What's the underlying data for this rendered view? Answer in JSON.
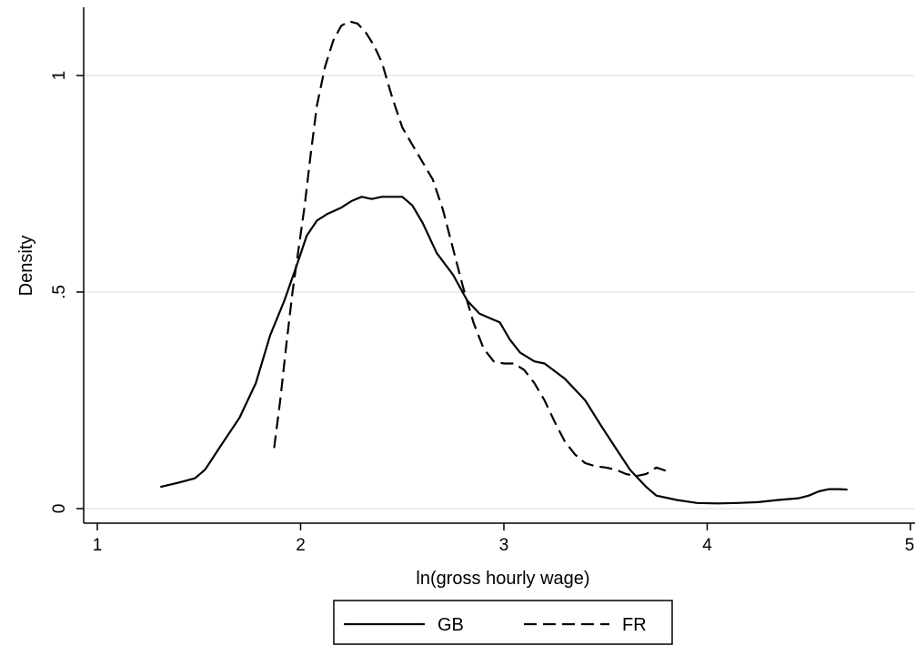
{
  "chart_data": {
    "type": "line",
    "title": "",
    "xlabel": "ln(gross hourly wage)",
    "ylabel": "Density",
    "xlim": [
      1,
      5
    ],
    "ylim": [
      0,
      1.15
    ],
    "x_ticks": [
      1,
      2,
      3,
      4,
      5
    ],
    "x_tick_labels": [
      "1",
      "2",
      "3",
      "4",
      "5"
    ],
    "y_ticks": [
      0,
      0.5,
      1
    ],
    "y_tick_labels": [
      "0",
      ".5",
      "1"
    ],
    "grid": "horizontal",
    "legend_position": "bottom",
    "series": [
      {
        "name": "GB",
        "style": "solid",
        "color": "#000000",
        "points": [
          [
            1.31,
            0.05
          ],
          [
            1.4,
            0.06
          ],
          [
            1.48,
            0.07
          ],
          [
            1.53,
            0.09
          ],
          [
            1.6,
            0.14
          ],
          [
            1.7,
            0.21
          ],
          [
            1.78,
            0.29
          ],
          [
            1.85,
            0.4
          ],
          [
            1.92,
            0.48
          ],
          [
            1.98,
            0.56
          ],
          [
            2.03,
            0.63
          ],
          [
            2.08,
            0.665
          ],
          [
            2.13,
            0.68
          ],
          [
            2.2,
            0.695
          ],
          [
            2.25,
            0.71
          ],
          [
            2.3,
            0.72
          ],
          [
            2.35,
            0.715
          ],
          [
            2.4,
            0.72
          ],
          [
            2.45,
            0.72
          ],
          [
            2.5,
            0.72
          ],
          [
            2.55,
            0.7
          ],
          [
            2.6,
            0.66
          ],
          [
            2.67,
            0.59
          ],
          [
            2.75,
            0.54
          ],
          [
            2.82,
            0.48
          ],
          [
            2.88,
            0.45
          ],
          [
            2.93,
            0.44
          ],
          [
            2.98,
            0.43
          ],
          [
            3.03,
            0.39
          ],
          [
            3.08,
            0.36
          ],
          [
            3.15,
            0.34
          ],
          [
            3.2,
            0.335
          ],
          [
            3.3,
            0.3
          ],
          [
            3.4,
            0.25
          ],
          [
            3.48,
            0.19
          ],
          [
            3.55,
            0.14
          ],
          [
            3.62,
            0.09
          ],
          [
            3.7,
            0.05
          ],
          [
            3.75,
            0.03
          ],
          [
            3.85,
            0.02
          ],
          [
            3.95,
            0.013
          ],
          [
            4.05,
            0.012
          ],
          [
            4.15,
            0.013
          ],
          [
            4.25,
            0.015
          ],
          [
            4.35,
            0.02
          ],
          [
            4.45,
            0.024
          ],
          [
            4.5,
            0.03
          ],
          [
            4.55,
            0.04
          ],
          [
            4.6,
            0.045
          ],
          [
            4.65,
            0.045
          ],
          [
            4.69,
            0.044
          ]
        ]
      },
      {
        "name": "FR",
        "style": "dashed",
        "color": "#000000",
        "points": [
          [
            1.87,
            0.14
          ],
          [
            1.9,
            0.25
          ],
          [
            1.93,
            0.38
          ],
          [
            1.96,
            0.5
          ],
          [
            1.99,
            0.6
          ],
          [
            2.02,
            0.7
          ],
          [
            2.05,
            0.82
          ],
          [
            2.08,
            0.93
          ],
          [
            2.12,
            1.02
          ],
          [
            2.16,
            1.08
          ],
          [
            2.2,
            1.115
          ],
          [
            2.24,
            1.125
          ],
          [
            2.28,
            1.12
          ],
          [
            2.32,
            1.1
          ],
          [
            2.36,
            1.07
          ],
          [
            2.4,
            1.03
          ],
          [
            2.45,
            0.95
          ],
          [
            2.5,
            0.88
          ],
          [
            2.55,
            0.84
          ],
          [
            2.6,
            0.8
          ],
          [
            2.65,
            0.76
          ],
          [
            2.7,
            0.69
          ],
          [
            2.75,
            0.6
          ],
          [
            2.8,
            0.51
          ],
          [
            2.85,
            0.43
          ],
          [
            2.9,
            0.37
          ],
          [
            2.95,
            0.34
          ],
          [
            3.0,
            0.335
          ],
          [
            3.05,
            0.335
          ],
          [
            3.1,
            0.32
          ],
          [
            3.15,
            0.29
          ],
          [
            3.2,
            0.25
          ],
          [
            3.25,
            0.2
          ],
          [
            3.3,
            0.155
          ],
          [
            3.35,
            0.125
          ],
          [
            3.4,
            0.105
          ],
          [
            3.45,
            0.098
          ],
          [
            3.5,
            0.095
          ],
          [
            3.55,
            0.09
          ],
          [
            3.6,
            0.08
          ],
          [
            3.65,
            0.075
          ],
          [
            3.7,
            0.08
          ],
          [
            3.75,
            0.095
          ],
          [
            3.81,
            0.085
          ]
        ]
      }
    ]
  }
}
